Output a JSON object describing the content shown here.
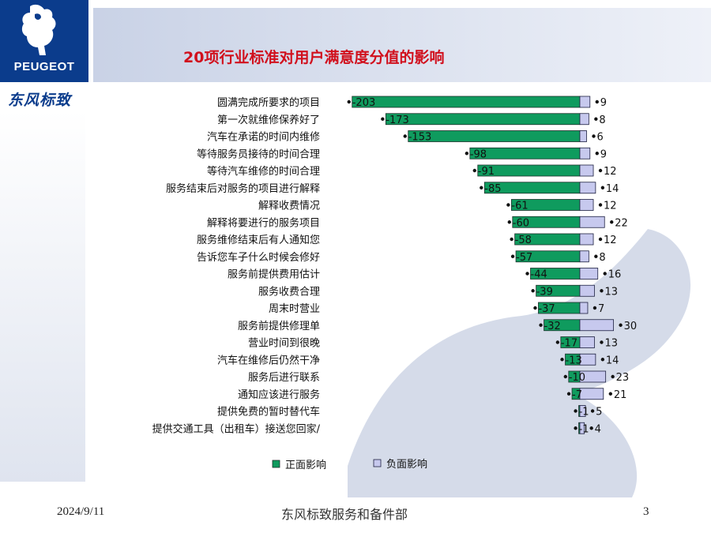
{
  "brand": {
    "name": "PEUGEOT",
    "chinese_name": "东风标致",
    "brand_color": "#0b3c8c"
  },
  "slide": {
    "title": "20项行业标准对用户满意度分值的影响",
    "title_color": "#d1101d",
    "footer_date": "2024/9/11",
    "footer_dept": "东风标致服务和备件部",
    "page_number": "3"
  },
  "chart_data": {
    "type": "bar",
    "orientation": "horizontal",
    "categories": [
      "圆满完成所要求的项目",
      "第一次就维修保养好了",
      "汽车在承诺的时间内维修",
      "等待服务员接待的时间合理",
      "等待汽车维修的时间合理",
      "服务结束后对服务的项目进行解释",
      "解释收费情况",
      "解释将要进行的服务项目",
      "服务维修结束后有人通知您",
      "告诉您车子什么时候会修好",
      "服务前提供费用估计",
      "服务收费合理",
      "周末时营业",
      "服务前提供修理单",
      "营业时间到很晚",
      "汽车在维修后仍然干净",
      "服务后进行联系",
      "通知应该进行服务",
      "提供免费的暂时替代车",
      "提供交通工具（出租车）接送您回家/"
    ],
    "series": [
      {
        "name": "正面影响",
        "color": "#0f9b5e",
        "values": [
          -203,
          -173,
          -153,
          -98,
          -91,
          -85,
          -61,
          -60,
          -58,
          -57,
          -44,
          -39,
          -37,
          -32,
          -17,
          -13,
          -10,
          -7,
          -1,
          -1
        ]
      },
      {
        "name": "负面影响",
        "color": "#c7c9ee",
        "values": [
          9,
          8,
          6,
          9,
          12,
          14,
          12,
          22,
          12,
          8,
          16,
          13,
          7,
          30,
          13,
          14,
          23,
          21,
          5,
          4
        ]
      }
    ],
    "legend_position": "bottom",
    "grid": false
  }
}
